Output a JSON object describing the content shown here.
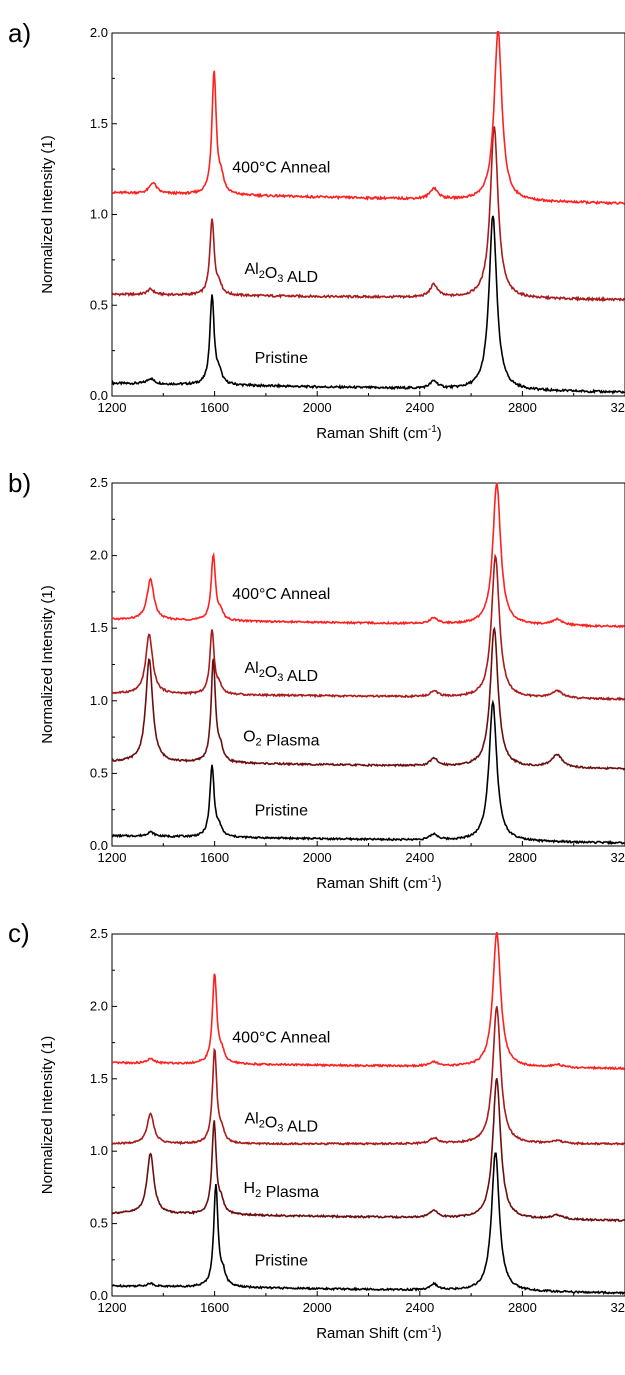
{
  "chart_data": [
    {
      "type": "line",
      "panel": "a)",
      "xlabel": "Raman Shift (cm",
      "xlabel_sup": "-1",
      "xlabel_end": ")",
      "ylabel": "Normalized Intensity (1)",
      "xlim": [
        1200,
        3200
      ],
      "ylim": [
        0,
        2.0
      ],
      "xticks": [
        1200,
        1600,
        2000,
        2400,
        2800,
        3200
      ],
      "xtick_labels": [
        "1200",
        "1600",
        "2000",
        "2400",
        "2800",
        "3200"
      ],
      "yticks": [
        0,
        0.5,
        1.0,
        1.5,
        2.0
      ],
      "ytick_labels": [
        "0.0",
        "0.5",
        "1.0",
        "1.5",
        "2.0"
      ],
      "series": [
        {
          "name": "Pristine",
          "label_parts": [
            {
              "t": "Pristine"
            }
          ],
          "color": "#000000",
          "base": 0.07,
          "tail": 0.02,
          "d_pos": 1350,
          "d_amp": 0.03,
          "g_pos": 1590,
          "g_amp": 0.49,
          "d2_amp": 0.04,
          "g2_pos": 2685,
          "g2_amp": 0.96,
          "d3_amp": 0.0
        },
        {
          "name": "Al2O3 ALD",
          "label_parts": [
            {
              "t": "Al"
            },
            {
              "t": "2",
              "sub": true
            },
            {
              "t": "O"
            },
            {
              "t": "3",
              "sub": true
            },
            {
              "t": " ALD"
            }
          ],
          "color": "#aa1a1a",
          "base": 0.56,
          "tail": 0.53,
          "d_pos": 1350,
          "d_amp": 0.03,
          "g_pos": 1590,
          "g_amp": 0.42,
          "d2_amp": 0.07,
          "g2_pos": 2690,
          "g2_amp": 0.95,
          "d3_amp": 0.0
        },
        {
          "name": "400°C Anneal",
          "label_parts": [
            {
              "t": "400°C Anneal"
            }
          ],
          "color": "#ff2020",
          "base": 1.12,
          "tail": 1.06,
          "d_pos": 1360,
          "d_amp": 0.06,
          "g_pos": 1598,
          "g_amp": 0.68,
          "d2_amp": 0.06,
          "g2_pos": 2705,
          "g2_amp": 0.94,
          "d3_amp": 0.0
        }
      ]
    },
    {
      "type": "line",
      "panel": "b)",
      "xlabel": "Raman Shift (cm",
      "xlabel_sup": "-1",
      "xlabel_end": ")",
      "ylabel": "Normalized Intensity (1)",
      "xlim": [
        1200,
        3200
      ],
      "ylim": [
        0,
        2.5
      ],
      "xticks": [
        1200,
        1600,
        2000,
        2400,
        2800,
        3200
      ],
      "xtick_labels": [
        "1200",
        "1600",
        "2000",
        "2400",
        "2800",
        "3200"
      ],
      "yticks": [
        0,
        0.5,
        1.0,
        1.5,
        2.0,
        2.5
      ],
      "ytick_labels": [
        "0.0",
        "0.5",
        "1.0",
        "1.5",
        "2.0",
        "2.5"
      ],
      "series": [
        {
          "name": "Pristine",
          "label_parts": [
            {
              "t": "Pristine"
            }
          ],
          "color": "#000000",
          "base": 0.07,
          "tail": 0.02,
          "d_pos": 1350,
          "d_amp": 0.03,
          "g_pos": 1590,
          "g_amp": 0.49,
          "d2_amp": 0.04,
          "g2_pos": 2685,
          "g2_amp": 0.96,
          "d3_amp": 0.0
        },
        {
          "name": "O2 Plasma",
          "label_parts": [
            {
              "t": "O"
            },
            {
              "t": "2",
              "sub": true
            },
            {
              "t": " Plasma"
            }
          ],
          "color": "#6a0f0f",
          "base": 0.58,
          "tail": 0.53,
          "d_pos": 1345,
          "d_amp": 0.71,
          "g_pos": 1595,
          "g_amp": 0.71,
          "d2_amp": 0.05,
          "g2_pos": 2690,
          "g2_amp": 0.96,
          "d3_amp": 0.09
        },
        {
          "name": "Al2O3 ALD",
          "label_parts": [
            {
              "t": "Al"
            },
            {
              "t": "2",
              "sub": true
            },
            {
              "t": "O"
            },
            {
              "t": "3",
              "sub": true
            },
            {
              "t": " ALD"
            }
          ],
          "color": "#aa1a1a",
          "base": 1.05,
          "tail": 1.01,
          "d_pos": 1345,
          "d_amp": 0.41,
          "g_pos": 1590,
          "g_amp": 0.44,
          "d2_amp": 0.04,
          "g2_pos": 2695,
          "g2_amp": 0.98,
          "d3_amp": 0.05
        },
        {
          "name": "400°C Anneal",
          "label_parts": [
            {
              "t": "400°C Anneal"
            }
          ],
          "color": "#ff2020",
          "base": 1.56,
          "tail": 1.51,
          "d_pos": 1350,
          "d_amp": 0.28,
          "g_pos": 1595,
          "g_amp": 0.45,
          "d2_amp": 0.04,
          "g2_pos": 2700,
          "g2_amp": 0.98,
          "d3_amp": 0.04
        }
      ]
    },
    {
      "type": "line",
      "panel": "c)",
      "xlabel": "Raman Shift (cm",
      "xlabel_sup": "-1",
      "xlabel_end": ")",
      "ylabel": "Normalized Intensity (1)",
      "xlim": [
        1200,
        3200
      ],
      "ylim": [
        0,
        2.5
      ],
      "xticks": [
        1200,
        1600,
        2000,
        2400,
        2800,
        3200
      ],
      "xtick_labels": [
        "1200",
        "1600",
        "2000",
        "2400",
        "2800",
        "3200"
      ],
      "yticks": [
        0,
        0.5,
        1.0,
        1.5,
        2.0,
        2.5
      ],
      "ytick_labels": [
        "0.0",
        "0.5",
        "1.0",
        "1.5",
        "2.0",
        "2.5"
      ],
      "series": [
        {
          "name": "Pristine",
          "label_parts": [
            {
              "t": "Pristine"
            }
          ],
          "color": "#000000",
          "base": 0.07,
          "tail": 0.02,
          "d_pos": 1350,
          "d_amp": 0.02,
          "g_pos": 1605,
          "g_amp": 0.7,
          "d2_amp": 0.04,
          "g2_pos": 2695,
          "g2_amp": 0.96,
          "d3_amp": 0.0
        },
        {
          "name": "H2 Plasma",
          "label_parts": [
            {
              "t": "H"
            },
            {
              "t": "2",
              "sub": true
            },
            {
              "t": " Plasma"
            }
          ],
          "color": "#6a0f0f",
          "base": 0.57,
          "tail": 0.52,
          "d_pos": 1350,
          "d_amp": 0.42,
          "g_pos": 1598,
          "g_amp": 0.64,
          "d2_amp": 0.05,
          "g2_pos": 2700,
          "g2_amp": 0.97,
          "d3_amp": 0.03
        },
        {
          "name": "Al2O3 ALD",
          "label_parts": [
            {
              "t": "Al"
            },
            {
              "t": "2",
              "sub": true
            },
            {
              "t": "O"
            },
            {
              "t": "3",
              "sub": true
            },
            {
              "t": " ALD"
            }
          ],
          "color": "#aa1a1a",
          "base": 1.05,
          "tail": 1.05,
          "d_pos": 1350,
          "d_amp": 0.21,
          "g_pos": 1600,
          "g_amp": 0.65,
          "d2_amp": 0.04,
          "g2_pos": 2700,
          "g2_amp": 0.95,
          "d3_amp": 0.02
        },
        {
          "name": "400°C Anneal",
          "label_parts": [
            {
              "t": "400°C Anneal"
            }
          ],
          "color": "#ff2020",
          "base": 1.61,
          "tail": 1.57,
          "d_pos": 1350,
          "d_amp": 0.03,
          "g_pos": 1600,
          "g_amp": 0.62,
          "d2_amp": 0.03,
          "g2_pos": 2700,
          "g2_amp": 0.93,
          "d3_amp": 0.02
        }
      ]
    }
  ]
}
